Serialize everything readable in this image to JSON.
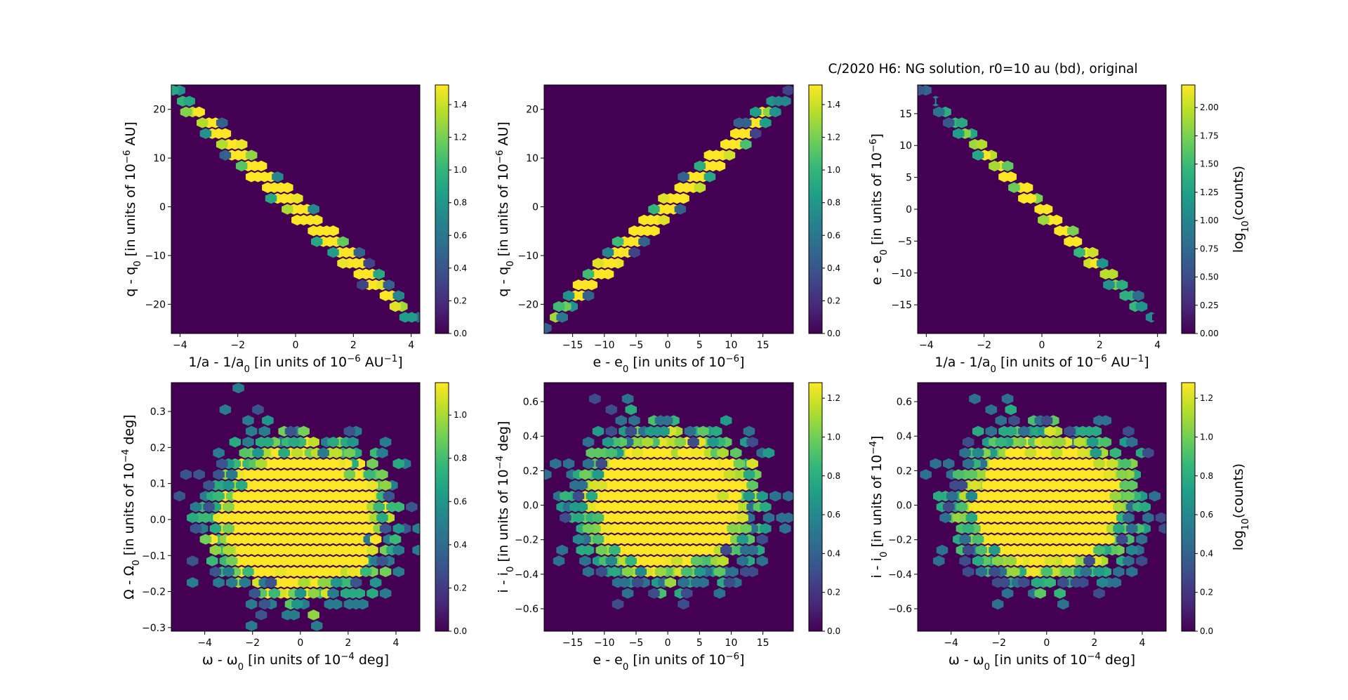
{
  "figure": {
    "suptitle": "C/2020 H6: NG solution, r0=10 au (bd), original",
    "colormap": "viridis",
    "background_color": "#440154"
  },
  "chart_data": [
    {
      "type": "heatmap",
      "xlabel": "1/a - 1/a",
      "xlabel_sub": "0",
      "xlabel_tail": " [in units of 10",
      "xlabel_sup": "-6",
      "xlabel_unit": " AU",
      "xlabel_unit_sup": "-1",
      "xlabel_end": "]",
      "ylabel": "q - q",
      "ylabel_sub": "0",
      "ylabel_tail": " [in units of 10",
      "ylabel_sup": "-6",
      "ylabel_end": " AU]",
      "xlim": [
        -4.3,
        4.3
      ],
      "ylim": [
        -26,
        25
      ],
      "xticks": [
        -4,
        -2,
        0,
        2,
        4
      ],
      "yticks": [
        -20,
        -10,
        0,
        10,
        20
      ],
      "cbar_ticks": [
        "0.0",
        "0.2",
        "0.4",
        "0.6",
        "0.8",
        "1.0",
        "1.2",
        "1.4"
      ],
      "cbar_max": 1.52,
      "cbar_label": "",
      "distribution": {
        "slope": -5.6,
        "sigma_x": 1.35,
        "sigma_perp": 0.55
      }
    },
    {
      "type": "heatmap",
      "xlabel": "e - e",
      "xlabel_sub": "0",
      "xlabel_tail": " [in units of 10",
      "xlabel_sup": "-6",
      "xlabel_end": "]",
      "ylabel": "q - q",
      "ylabel_sub": "0",
      "ylabel_tail": " [in units of 10",
      "ylabel_sup": "-6",
      "ylabel_end": " AU]",
      "xlim": [
        -19.5,
        19.8
      ],
      "ylim": [
        -26,
        25
      ],
      "xticks": [
        -15,
        -10,
        -5,
        0,
        5,
        10,
        15
      ],
      "yticks": [
        -20,
        -10,
        0,
        10,
        20
      ],
      "cbar_ticks": [
        "0.0",
        "0.2",
        "0.4",
        "0.6",
        "0.8",
        "1.0",
        "1.2",
        "1.4"
      ],
      "cbar_max": 1.52,
      "cbar_label": "",
      "distribution": {
        "slope": 1.25,
        "sigma_x": 6.0,
        "sigma_perp": 0.5
      }
    },
    {
      "type": "heatmap",
      "xlabel": "1/a - 1/a",
      "xlabel_sub": "0",
      "xlabel_tail": " [in units of 10",
      "xlabel_sup": "-6",
      "xlabel_unit": " AU",
      "xlabel_unit_sup": "-1",
      "xlabel_end": "]",
      "ylabel": "e - e",
      "ylabel_sub": "0",
      "ylabel_tail": " [in units of 10",
      "ylabel_sup": "-6",
      "ylabel_end": "]",
      "xlim": [
        -4.3,
        4.3
      ],
      "ylim": [
        -19.5,
        19.5
      ],
      "xticks": [
        -4,
        -2,
        0,
        2,
        4
      ],
      "yticks": [
        -15,
        -10,
        -5,
        0,
        5,
        10,
        15
      ],
      "cbar_ticks": [
        "0.00",
        "0.25",
        "0.50",
        "0.75",
        "1.00",
        "1.25",
        "1.50",
        "1.75",
        "2.00"
      ],
      "cbar_max": 2.2,
      "cbar_label": "log",
      "cbar_label_sub": "10",
      "cbar_label_tail": "(counts)",
      "distribution": {
        "slope": -4.5,
        "sigma_x": 1.35,
        "sigma_perp": 0.0
      }
    },
    {
      "type": "heatmap",
      "xlabel": "ω - ω",
      "xlabel_sub": "0",
      "xlabel_tail": " [in units of 10",
      "xlabel_sup": "-4",
      "xlabel_end": " deg]",
      "ylabel": "Ω - Ω",
      "ylabel_sub": "0",
      "ylabel_tail": " [in units of 10",
      "ylabel_sup": "-4",
      "ylabel_end": " deg]",
      "xlim": [
        -5.4,
        5.0
      ],
      "ylim": [
        -0.31,
        0.38
      ],
      "xticks": [
        -4,
        -2,
        0,
        2,
        4
      ],
      "yticks": [
        "-0.3",
        "-0.2",
        "-0.1",
        "0.0",
        "0.1",
        "0.2",
        "0.3"
      ],
      "cbar_ticks": [
        "0.0",
        "0.2",
        "0.4",
        "0.6",
        "0.8",
        "1.0"
      ],
      "cbar_max": 1.15,
      "cbar_label": "",
      "distribution": {
        "slope": 0.0,
        "sigma_x": 1.45,
        "sigma_perp": 0.085
      }
    },
    {
      "type": "heatmap",
      "xlabel": "e - e",
      "xlabel_sub": "0",
      "xlabel_tail": " [in units of 10",
      "xlabel_sup": "-6",
      "xlabel_end": "]",
      "ylabel": "i - i",
      "ylabel_sub": "0",
      "ylabel_tail": " [in units of 10",
      "ylabel_sup": "-4",
      "ylabel_end": " deg]",
      "xlim": [
        -19.5,
        19.8
      ],
      "ylim": [
        -0.73,
        0.71
      ],
      "xticks": [
        -15,
        -10,
        -5,
        0,
        5,
        10,
        15
      ],
      "yticks": [
        "-0.6",
        "-0.4",
        "-0.2",
        "0.0",
        "0.2",
        "0.4",
        "0.6"
      ],
      "cbar_ticks": [
        "0.0",
        "0.2",
        "0.4",
        "0.6",
        "0.8",
        "1.0",
        "1.2"
      ],
      "cbar_max": 1.28,
      "cbar_label": "",
      "distribution": {
        "slope": 0.0,
        "sigma_x": 5.5,
        "sigma_perp": 0.17
      }
    },
    {
      "type": "heatmap",
      "xlabel": "ω - ω",
      "xlabel_sub": "0",
      "xlabel_tail": " [in units of 10",
      "xlabel_sup": "-4",
      "xlabel_end": " deg]",
      "ylabel": "i - i",
      "ylabel_sub": "0",
      "ylabel_tail": " [in units of 10",
      "ylabel_sup": "-4",
      "ylabel_end": "]",
      "xlim": [
        -5.4,
        5.0
      ],
      "ylim": [
        -0.73,
        0.71
      ],
      "xticks": [
        -4,
        -2,
        0,
        2,
        4
      ],
      "yticks": [
        "-0.6",
        "-0.4",
        "-0.2",
        "0.0",
        "0.2",
        "0.4",
        "0.6"
      ],
      "cbar_ticks": [
        "0.0",
        "0.2",
        "0.4",
        "0.6",
        "0.8",
        "1.0",
        "1.2"
      ],
      "cbar_max": 1.28,
      "cbar_label": "log",
      "cbar_label_sub": "10",
      "cbar_label_tail": "(counts)",
      "distribution": {
        "slope": 0.0,
        "sigma_x": 1.45,
        "sigma_perp": 0.17
      }
    }
  ]
}
